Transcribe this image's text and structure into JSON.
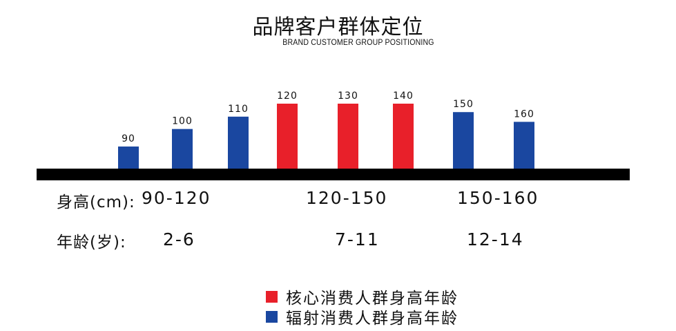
{
  "title": "品牌客户群体定位",
  "subtitle": "BRAND CUSTOMER GROUP POSITIONING",
  "colors": {
    "core": "#e8202a",
    "radiant": "#1a47a0",
    "baseline": "#000000"
  },
  "chart_data": {
    "type": "bar",
    "categories": [
      "90",
      "100",
      "110",
      "120",
      "130",
      "140",
      "150",
      "160"
    ],
    "values": [
      90,
      100,
      110,
      120,
      130,
      140,
      150,
      160
    ],
    "segment": [
      "radiant",
      "radiant",
      "radiant",
      "core",
      "core",
      "core",
      "radiant",
      "radiant"
    ],
    "bar_heights_relative": [
      0.34,
      0.61,
      0.8,
      1.0,
      1.0,
      1.0,
      0.87,
      0.72
    ],
    "grid": false,
    "legend_position": "bottom"
  },
  "height_row": {
    "label": "身高(cm):",
    "ranges": [
      "90-120",
      "120-150",
      "150-160"
    ]
  },
  "age_row": {
    "label": "年龄(岁):",
    "ranges": [
      "2-6",
      "7-11",
      "12-14"
    ]
  },
  "legend": [
    {
      "label": "核心消费人群身高年龄",
      "color_key": "core"
    },
    {
      "label": "辐射消费人群身高年龄",
      "color_key": "radiant"
    }
  ]
}
